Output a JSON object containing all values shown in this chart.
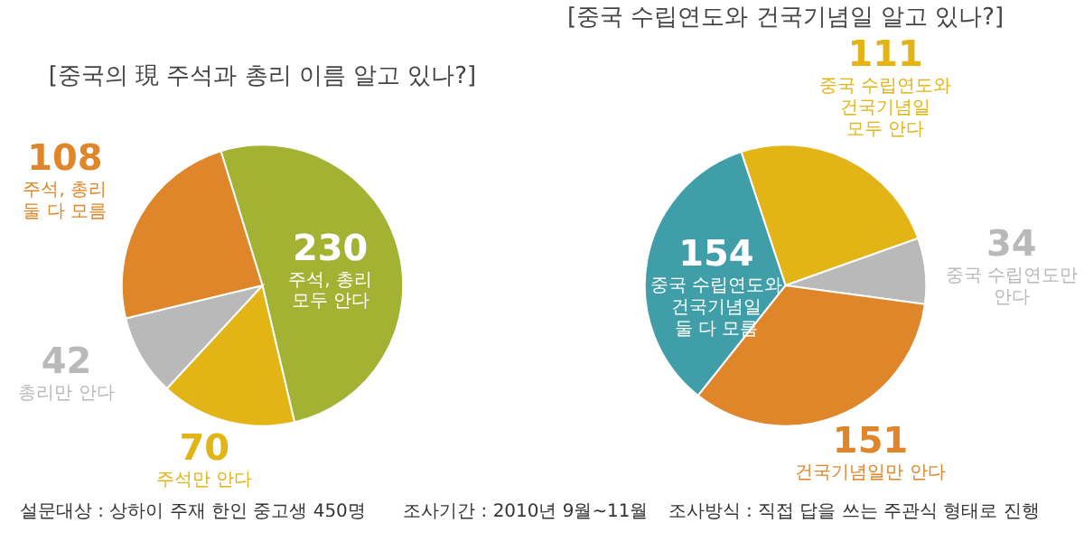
{
  "chart_data": [
    {
      "type": "pie",
      "title": "[중국의 現 주석과 총리 이름 알고 있나?]",
      "categories": [
        "주석, 총리\n모두 안다",
        "주석만 안다",
        "총리만 안다",
        "주석, 총리\n둘 다 모름"
      ],
      "values": [
        230,
        70,
        42,
        108
      ],
      "colors": [
        "#a3b232",
        "#e3b416",
        "#b9b9b9",
        "#e0862a"
      ],
      "data_labels": true,
      "annotations": [
        "설문대상 : 상하이 주재 한인 중고생 450명",
        "조사기간 : 2010년 9월~11월",
        "조사방식 : 직접 답을 쓰는 주관식 형태로 진행"
      ]
    },
    {
      "type": "pie",
      "title": "[중국 수립연도와 건국기념일 알고 있나?]",
      "categories": [
        "중국 수립연도와\n건국기념일\n모두 안다",
        "중국 수립연도만\n안다",
        "건국기념일만 안다",
        "중국 수립연도와\n건국기념일\n둘 다 모름"
      ],
      "values": [
        111,
        34,
        151,
        154
      ],
      "colors": [
        "#e3b416",
        "#b9b9b9",
        "#e0862a",
        "#3f9ea8"
      ],
      "data_labels": true
    }
  ]
}
